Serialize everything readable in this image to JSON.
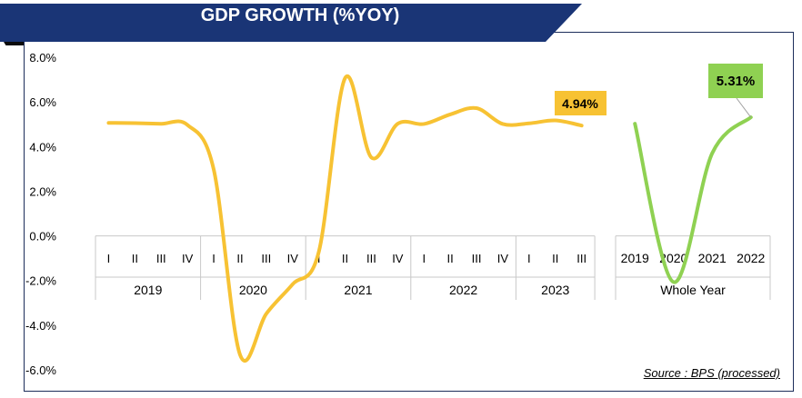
{
  "title": "GDP GROWTH (%YOY)",
  "source": "Source : BPS (processed)",
  "colors": {
    "banner": "#1a3576",
    "quarterly": "#f7c233",
    "annual": "#8fd152",
    "callout_quarterly": "#f7c233",
    "callout_annual": "#8fd152"
  },
  "chart_data": [
    {
      "type": "line",
      "name_panel": "quarterly",
      "ylim": [
        -6,
        8
      ],
      "y_ticks": [
        "8.0%",
        "6.0%",
        "4.0%",
        "2.0%",
        "0.0%",
        "-2.0%",
        "-4.0%",
        "-6.0%"
      ],
      "groups": [
        {
          "label": "2019",
          "quarters": [
            "I",
            "II",
            "III",
            "IV"
          ]
        },
        {
          "label": "2020",
          "quarters": [
            "I",
            "II",
            "III",
            "IV"
          ]
        },
        {
          "label": "2021",
          "quarters": [
            "I",
            "II",
            "III",
            "IV"
          ]
        },
        {
          "label": "2022",
          "quarters": [
            "I",
            "II",
            "III",
            "IV"
          ]
        },
        {
          "label": "2023",
          "quarters": [
            "I",
            "II",
            "III"
          ]
        }
      ],
      "values": [
        5.06,
        5.05,
        5.02,
        4.97,
        2.97,
        -5.32,
        -3.49,
        -2.17,
        -0.71,
        7.07,
        3.51,
        5.02,
        5.01,
        5.44,
        5.72,
        5.01,
        5.04,
        5.17,
        4.94
      ],
      "annotation": "4.94%"
    },
    {
      "type": "line",
      "name_panel": "annual",
      "group_label": "Whole Year",
      "categories": [
        "2019",
        "2020",
        "2021",
        "2022"
      ],
      "values": [
        5.02,
        -2.07,
        3.7,
        5.31
      ],
      "annotation": "5.31%"
    }
  ]
}
